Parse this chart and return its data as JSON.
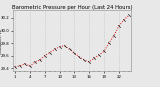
{
  "title": "Barometric Pressure per Hour (Last 24 Hours)",
  "background_color": "#e8e8e8",
  "plot_bg_color": "#e8e8e8",
  "grid_color": "#bbbbbb",
  "line_color": "#dd0000",
  "marker_color": "#111111",
  "y_values": [
    29.42,
    29.44,
    29.47,
    29.43,
    29.5,
    29.53,
    29.6,
    29.65,
    29.7,
    29.74,
    29.76,
    29.7,
    29.64,
    29.58,
    29.53,
    29.5,
    29.56,
    29.61,
    29.67,
    29.8,
    29.92,
    30.07,
    30.17,
    30.24
  ],
  "ylim_min": 29.35,
  "ylim_max": 30.32,
  "ytick_values": [
    29.4,
    29.6,
    29.8,
    30.0,
    30.2
  ],
  "ytick_labels": [
    "29.4",
    "29.6",
    "29.8",
    "30.0",
    "30.2"
  ],
  "n_points": 24,
  "title_fontsize": 3.8,
  "tick_fontsize": 2.8,
  "left_label": "Milwaukee, WI"
}
